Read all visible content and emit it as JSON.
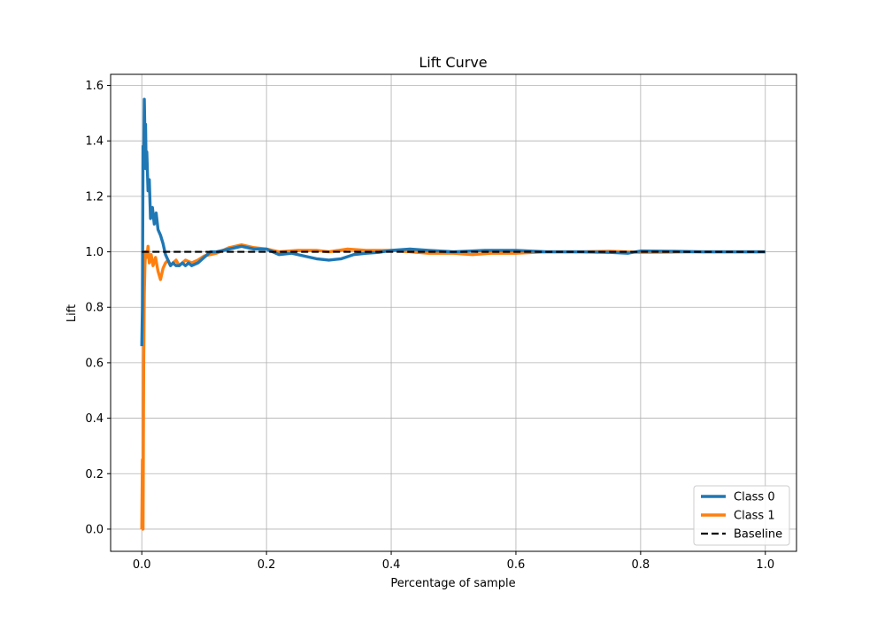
{
  "chart_data": {
    "type": "line",
    "title": "Lift Curve",
    "xlabel": "Percentage of sample",
    "ylabel": "Lift",
    "xlim": [
      -0.05,
      1.05
    ],
    "ylim": [
      -0.08,
      1.64
    ],
    "grid": true,
    "legend_position": "bottom-right",
    "x_ticks": [
      0.0,
      0.2,
      0.4,
      0.6,
      0.8,
      1.0
    ],
    "x_tick_labels": [
      "0.0",
      "0.2",
      "0.4",
      "0.6",
      "0.8",
      "1.0"
    ],
    "y_ticks": [
      0.0,
      0.2,
      0.4,
      0.6,
      0.8,
      1.0,
      1.2,
      1.4,
      1.6
    ],
    "y_tick_labels": [
      "0.0",
      "0.2",
      "0.4",
      "0.6",
      "0.8",
      "1.0",
      "1.2",
      "1.4",
      "1.6"
    ],
    "series": [
      {
        "name": "Class 0",
        "color": "#1f77b4",
        "style": "solid",
        "points": [
          [
            0.0,
            0.66
          ],
          [
            0.001,
            0.8
          ],
          [
            0.002,
            1.38
          ],
          [
            0.003,
            1.3
          ],
          [
            0.004,
            1.55
          ],
          [
            0.005,
            1.42
          ],
          [
            0.006,
            1.46
          ],
          [
            0.007,
            1.3
          ],
          [
            0.008,
            1.36
          ],
          [
            0.01,
            1.22
          ],
          [
            0.012,
            1.26
          ],
          [
            0.014,
            1.12
          ],
          [
            0.017,
            1.16
          ],
          [
            0.02,
            1.1
          ],
          [
            0.023,
            1.14
          ],
          [
            0.026,
            1.08
          ],
          [
            0.03,
            1.06
          ],
          [
            0.034,
            1.03
          ],
          [
            0.038,
            0.99
          ],
          [
            0.042,
            0.97
          ],
          [
            0.046,
            0.95
          ],
          [
            0.05,
            0.96
          ],
          [
            0.055,
            0.95
          ],
          [
            0.06,
            0.95
          ],
          [
            0.065,
            0.96
          ],
          [
            0.07,
            0.95
          ],
          [
            0.075,
            0.96
          ],
          [
            0.08,
            0.95
          ],
          [
            0.09,
            0.96
          ],
          [
            0.1,
            0.98
          ],
          [
            0.11,
            1.0
          ],
          [
            0.12,
            1.0
          ],
          [
            0.14,
            1.01
          ],
          [
            0.16,
            1.02
          ],
          [
            0.18,
            1.01
          ],
          [
            0.2,
            1.01
          ],
          [
            0.22,
            0.99
          ],
          [
            0.24,
            0.995
          ],
          [
            0.26,
            0.985
          ],
          [
            0.28,
            0.975
          ],
          [
            0.3,
            0.97
          ],
          [
            0.32,
            0.975
          ],
          [
            0.34,
            0.99
          ],
          [
            0.36,
            0.995
          ],
          [
            0.38,
            0.998
          ],
          [
            0.4,
            1.005
          ],
          [
            0.43,
            1.01
          ],
          [
            0.46,
            1.005
          ],
          [
            0.5,
            1.0
          ],
          [
            0.55,
            1.005
          ],
          [
            0.6,
            1.005
          ],
          [
            0.65,
            1.0
          ],
          [
            0.7,
            1.0
          ],
          [
            0.75,
            0.998
          ],
          [
            0.78,
            0.995
          ],
          [
            0.8,
            1.003
          ],
          [
            0.85,
            1.002
          ],
          [
            0.9,
            1.0
          ],
          [
            0.95,
            1.0
          ],
          [
            1.0,
            1.0
          ]
        ]
      },
      {
        "name": "Class 1",
        "color": "#ff7f0e",
        "style": "solid",
        "points": [
          [
            0.0,
            0.0
          ],
          [
            0.001,
            0.25
          ],
          [
            0.002,
            0.0
          ],
          [
            0.003,
            0.6
          ],
          [
            0.004,
            0.85
          ],
          [
            0.005,
            0.95
          ],
          [
            0.006,
            1.0
          ],
          [
            0.008,
            0.98
          ],
          [
            0.01,
            1.02
          ],
          [
            0.012,
            0.96
          ],
          [
            0.015,
            0.99
          ],
          [
            0.018,
            0.95
          ],
          [
            0.022,
            0.98
          ],
          [
            0.026,
            0.93
          ],
          [
            0.03,
            0.9
          ],
          [
            0.034,
            0.94
          ],
          [
            0.038,
            0.96
          ],
          [
            0.042,
            0.97
          ],
          [
            0.046,
            0.95
          ],
          [
            0.05,
            0.96
          ],
          [
            0.055,
            0.97
          ],
          [
            0.06,
            0.95
          ],
          [
            0.065,
            0.96
          ],
          [
            0.07,
            0.97
          ],
          [
            0.08,
            0.96
          ],
          [
            0.09,
            0.97
          ],
          [
            0.1,
            0.985
          ],
          [
            0.11,
            0.99
          ],
          [
            0.12,
            0.995
          ],
          [
            0.14,
            1.015
          ],
          [
            0.16,
            1.025
          ],
          [
            0.18,
            1.015
          ],
          [
            0.2,
            1.01
          ],
          [
            0.22,
            1.0
          ],
          [
            0.25,
            1.005
          ],
          [
            0.28,
            1.005
          ],
          [
            0.3,
            1.0
          ],
          [
            0.33,
            1.01
          ],
          [
            0.36,
            1.005
          ],
          [
            0.4,
            1.005
          ],
          [
            0.43,
            1.0
          ],
          [
            0.46,
            0.995
          ],
          [
            0.5,
            0.995
          ],
          [
            0.53,
            0.99
          ],
          [
            0.56,
            0.995
          ],
          [
            0.6,
            0.995
          ],
          [
            0.65,
            1.0
          ],
          [
            0.7,
            1.0
          ],
          [
            0.75,
            1.002
          ],
          [
            0.8,
            0.998
          ],
          [
            0.85,
            0.999
          ],
          [
            0.9,
            1.0
          ],
          [
            0.95,
            1.0
          ],
          [
            1.0,
            1.0
          ]
        ]
      },
      {
        "name": "Baseline",
        "color": "#000000",
        "style": "dashed",
        "points": [
          [
            0.0,
            1.0
          ],
          [
            1.0,
            1.0
          ]
        ]
      }
    ]
  }
}
